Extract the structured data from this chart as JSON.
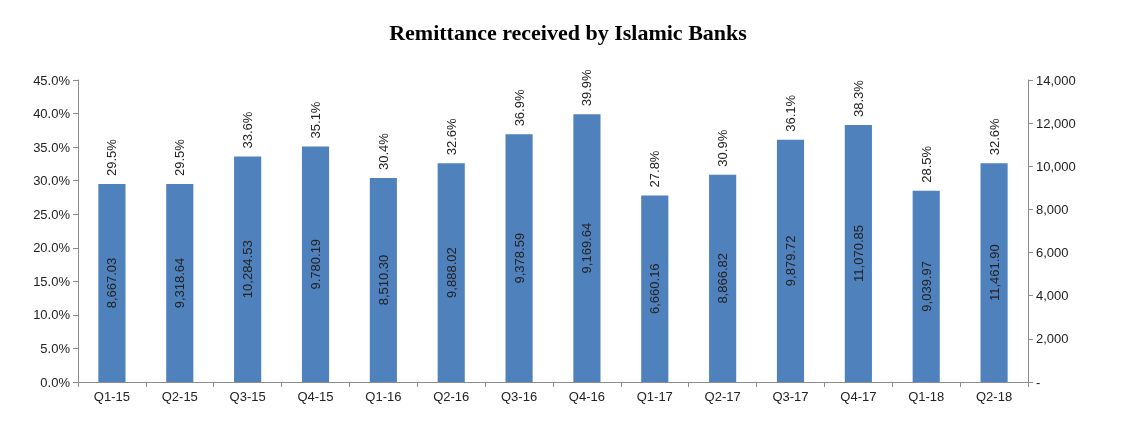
{
  "chart_data": {
    "type": "bar",
    "title": "Remittance received by Islamic Banks",
    "categories": [
      "Q1-15",
      "Q2-15",
      "Q3-15",
      "Q4-15",
      "Q1-16",
      "Q2-16",
      "Q3-16",
      "Q4-16",
      "Q1-17",
      "Q2-17",
      "Q3-17",
      "Q4-17",
      "Q1-18",
      "Q2-18"
    ],
    "series": [
      {
        "color": "#4f81bd",
        "values": [
          29.5,
          29.5,
          33.6,
          35.1,
          30.4,
          32.6,
          36.9,
          39.9,
          27.8,
          30.9,
          36.1,
          38.3,
          28.5,
          32.6
        ],
        "value_labels": [
          "29.5%",
          "29.5%",
          "33.6%",
          "35.1%",
          "30.4%",
          "32.6%",
          "36.9%",
          "39.9%",
          "27.8%",
          "30.9%",
          "36.1%",
          "38.3%",
          "28.5%",
          "32.6%"
        ]
      }
    ],
    "ylim": [
      0,
      45
    ],
    "yticks": [
      {
        "value": 0,
        "label": "0.0%"
      },
      {
        "value": 5,
        "label": "5.0%"
      },
      {
        "value": 10,
        "label": "10.0%"
      },
      {
        "value": 15,
        "label": "15.0%"
      },
      {
        "value": 20,
        "label": "20.0%"
      },
      {
        "value": 25,
        "label": "25.0%"
      },
      {
        "value": 30,
        "label": "30.0%"
      },
      {
        "value": 35,
        "label": "35.0%"
      },
      {
        "value": 40,
        "label": "40.0%"
      },
      {
        "value": 45,
        "label": "45.0%"
      }
    ],
    "y2lim": [
      0,
      14000
    ],
    "y2ticks": [
      {
        "value": 0,
        "label": "-"
      },
      {
        "value": 2000,
        "label": "2,000"
      },
      {
        "value": 4000,
        "label": "4,000"
      },
      {
        "value": 6000,
        "label": "6,000"
      },
      {
        "value": 8000,
        "label": "8,000"
      },
      {
        "value": 10000,
        "label": "10,000"
      },
      {
        "value": 12000,
        "label": "12,000"
      },
      {
        "value": 14000,
        "label": "14,000"
      }
    ],
    "annotations": [
      "8,667.03",
      "9,318.64",
      "10,284.53",
      "9.780.19",
      "8,510.30",
      "9,888.02",
      "9,378.59",
      "9,169.64",
      "6,660.16",
      "8,866.82",
      "9,879.72",
      "11,070.85",
      "9,039.97",
      "11,461.90"
    ],
    "grid": false
  }
}
